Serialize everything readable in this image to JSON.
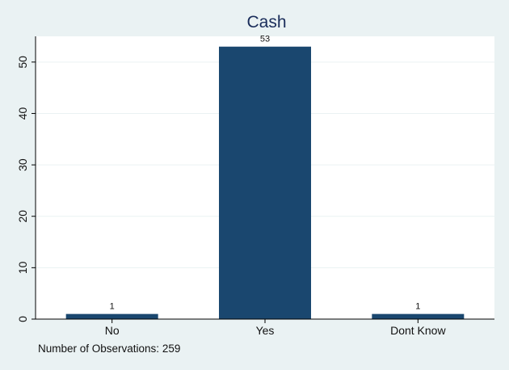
{
  "chart_data": {
    "type": "bar",
    "title": "Cash",
    "categories": [
      "No",
      "Yes",
      "Dont Know"
    ],
    "values": [
      1,
      53,
      1
    ],
    "data_labels": [
      "1",
      "53",
      "1"
    ],
    "xlabel": "",
    "ylabel": "",
    "ylim": [
      0,
      55
    ],
    "yticks": [
      0,
      10,
      20,
      30,
      40,
      50
    ],
    "grid": true,
    "legend": "none",
    "note": "Number of Observations: 259",
    "colors": {
      "bar": "#1a476f",
      "background": "#eaf2f3",
      "plot_background": "#ffffff",
      "grid": "#eaf2f3",
      "title": "#1a2d5a"
    }
  }
}
